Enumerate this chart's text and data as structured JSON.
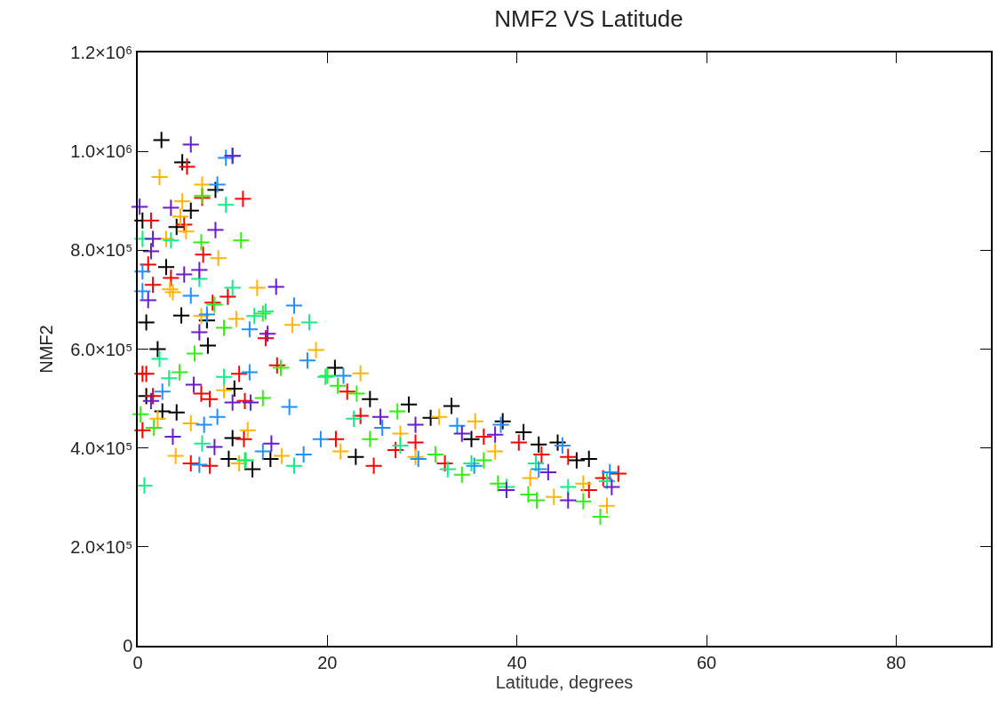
{
  "chart_data": {
    "type": "scatter",
    "title": "NMF2 VS Latitude",
    "xlabel": "Latitude, degrees",
    "ylabel": "NMF2",
    "marker": "cross",
    "grid": false,
    "xlim": [
      0,
      90
    ],
    "xticks": [
      0,
      20,
      40,
      60,
      80
    ],
    "ylim": [
      0,
      1200000
    ],
    "yticks": [
      {
        "value": 0,
        "label": "0"
      },
      {
        "value": 200000,
        "label": "2.0×10⁵"
      },
      {
        "value": 400000,
        "label": "4.0×10⁵"
      },
      {
        "value": 600000,
        "label": "6.0×10⁵"
      },
      {
        "value": 800000,
        "label": "8.0×10⁵"
      },
      {
        "value": 1000000,
        "label": "1.0×10⁶"
      },
      {
        "value": 1200000,
        "label": "1.2×10⁶"
      }
    ],
    "series": [
      {
        "color": "#000000",
        "x": [
          2.5,
          4.7,
          5.6,
          8.2,
          0.5,
          4.1,
          3,
          0.9,
          4.6,
          7.3,
          2.1,
          0.9,
          2.6,
          4.1,
          10.2,
          9.6,
          10,
          12.1,
          14,
          20.8,
          24.5,
          28.6,
          33.1,
          23,
          38.5,
          40.7,
          30.9,
          42.3,
          44.3,
          47.6,
          46.3,
          35.2,
          7.4
        ],
        "values": [
          1023000,
          978000,
          880000,
          922000,
          860000,
          847000,
          766000,
          654000,
          668000,
          658000,
          600000,
          505000,
          474000,
          472000,
          520000,
          378000,
          420000,
          357000,
          378000,
          562000,
          499000,
          488000,
          485000,
          382000,
          454000,
          432000,
          461000,
          407000,
          411000,
          378000,
          375000,
          418000,
          607000
        ]
      },
      {
        "color": "#ff0000",
        "x": [
          5.2,
          11.1,
          6.8,
          1.4,
          4.9,
          6.9,
          1.1,
          3.5,
          1.6,
          9.5,
          7.9,
          0.5,
          0.9,
          1.6,
          7.6,
          5.6,
          0.5,
          7.6,
          6.7,
          11.3,
          11.2,
          14.7,
          13.5,
          10.7,
          24.9,
          50.7,
          32.4,
          29.3,
          22.1,
          27.2,
          40.2,
          47.6,
          36.5,
          23.5,
          45.4,
          42.6,
          49.1,
          20.9
        ],
        "values": [
          969000,
          904000,
          906000,
          860000,
          852000,
          791000,
          771000,
          744000,
          730000,
          706000,
          694000,
          550000,
          550000,
          505000,
          364000,
          369000,
          436000,
          499000,
          510000,
          495000,
          418000,
          567000,
          622000,
          550000,
          364000,
          348000,
          369000,
          411000,
          514000,
          396000,
          411000,
          315000,
          423000,
          465000,
          382000,
          387000,
          339000,
          418000
        ]
      },
      {
        "color": "#ffb400",
        "x": [
          2.3,
          6.8,
          4.7,
          4.5,
          5.1,
          3,
          8.5,
          3.7,
          3.4,
          12.6,
          6.7,
          16.3,
          18.8,
          10.4,
          5.6,
          2.1,
          4,
          10.7,
          11.6,
          9.1,
          15.2,
          23.5,
          35.6,
          31.8,
          43.9,
          49.5,
          47,
          41.4,
          29.3,
          21.4,
          37.7,
          27.7
        ],
        "values": [
          948000,
          933000,
          899000,
          868000,
          838000,
          823000,
          784000,
          715000,
          721000,
          724000,
          667000,
          649000,
          598000,
          661000,
          450000,
          459000,
          384000,
          369000,
          436000,
          517000,
          384000,
          551000,
          454000,
          463000,
          301000,
          283000,
          328000,
          339000,
          382000,
          393000,
          393000,
          429000
        ]
      },
      {
        "color": "#33ee11",
        "x": [
          6.8,
          10.9,
          6.7,
          9.1,
          13.2,
          6,
          8.1,
          4.4,
          1.7,
          0.3,
          11.4,
          15.1,
          13.2,
          20,
          21.1,
          23.1,
          27.4,
          34.2,
          38,
          41.2,
          42.1,
          48.8,
          36.5,
          24.5,
          31.4,
          47
        ],
        "values": [
          910000,
          820000,
          816000,
          643000,
          672000,
          591000,
          690000,
          553000,
          441000,
          468000,
          375000,
          562000,
          501000,
          546000,
          526000,
          510000,
          474000,
          346000,
          328000,
          306000,
          294000,
          261000,
          375000,
          418000,
          387000,
          292000
        ]
      },
      {
        "color": "#11ee88",
        "x": [
          0.7,
          9.3,
          3.5,
          0.5,
          6.5,
          10,
          18.1,
          13.5,
          12.3,
          2.3,
          3.3,
          6.8,
          9.1,
          16.5,
          19.8,
          11.3,
          38.9,
          35.2,
          45.4,
          22.8,
          32.7,
          27.7,
          49.5,
          42
        ],
        "values": [
          324000,
          892000,
          820000,
          823000,
          742000,
          724000,
          654000,
          676000,
          667000,
          580000,
          541000,
          409000,
          544000,
          364000,
          544000,
          375000,
          321000,
          369000,
          321000,
          459000,
          357000,
          405000,
          333000,
          369000
        ]
      },
      {
        "color": "#1e90ff",
        "x": [
          10,
          9.3,
          8.4,
          0.5,
          5.6,
          16.5,
          7.3,
          11.8,
          0.5,
          2.6,
          7,
          6.5,
          8.4,
          11.8,
          17.9,
          13.2,
          17.5,
          16,
          21.7,
          33.7,
          29.6,
          38.3,
          44.8,
          49.8,
          35.5,
          25.8,
          42.3,
          19.3
        ],
        "values": [
          991000,
          987000,
          933000,
          717000,
          708000,
          688000,
          670000,
          640000,
          757000,
          514000,
          447000,
          366000,
          463000,
          553000,
          577000,
          393000,
          387000,
          483000,
          546000,
          445000,
          378000,
          447000,
          405000,
          351000,
          364000,
          441000,
          357000,
          418000
        ]
      },
      {
        "color": "#6a1bd0",
        "x": [
          5.6,
          10,
          3.5,
          8.2,
          1.6,
          1.4,
          4.9,
          6.5,
          14.6,
          1.1,
          6.5,
          13.7,
          0.2,
          5.9,
          1.4,
          3.7,
          8.1,
          14.1,
          10,
          11.9,
          25.6,
          34.2,
          37.7,
          38.9,
          45.4,
          50,
          43.3,
          29.3
        ],
        "values": [
          1014000,
          991000,
          886000,
          841000,
          823000,
          798000,
          751000,
          760000,
          726000,
          699000,
          634000,
          631000,
          888000,
          528000,
          495000,
          423000,
          402000,
          409000,
          492000,
          492000,
          463000,
          429000,
          427000,
          315000,
          294000,
          321000,
          351000,
          447000
        ]
      }
    ]
  }
}
